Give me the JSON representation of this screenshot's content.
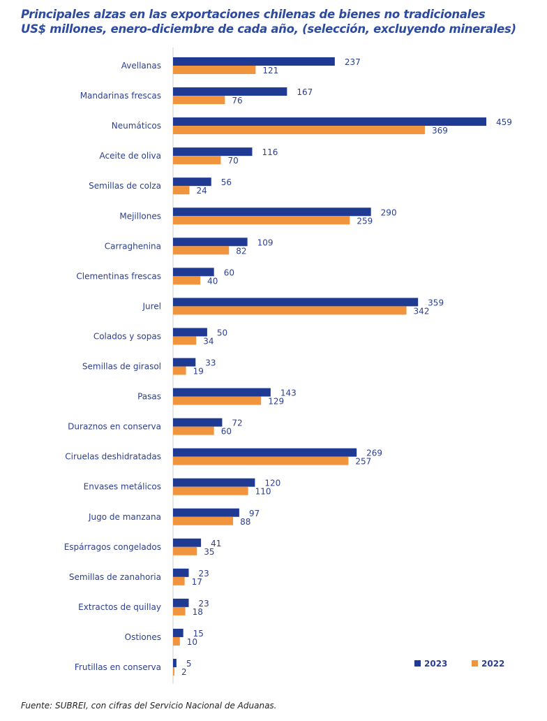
{
  "chart_data": {
    "type": "bar",
    "orientation": "horizontal",
    "title": "Principales alzas en las exportaciones chilenas de bienes no tradicionales",
    "subtitle": "US$ millones, enero-diciembre de cada año, (selección, excluyendo minerales)",
    "categories": [
      "Avellanas",
      "Mandarinas frescas",
      "Neumáticos",
      "Aceite de oliva",
      "Semillas de colza",
      "Mejillones",
      "Carraghenina",
      "Clementinas frescas",
      "Jurel",
      "Colados y sopas",
      "Semillas de girasol",
      "Pasas",
      "Duraznos en conserva",
      "Ciruelas deshidratadas",
      "Envases metálicos",
      "Jugo de manzana",
      "Espárragos congelados",
      "Semillas de zanahoria",
      "Extractos de quillay",
      "Ostiones",
      "Frutillas en conserva"
    ],
    "series": [
      {
        "name": "2023",
        "color": "#1f3a93",
        "values": [
          237,
          167,
          459,
          116,
          56,
          290,
          109,
          60,
          359,
          50,
          33,
          143,
          72,
          269,
          120,
          97,
          41,
          23,
          23,
          15,
          5
        ]
      },
      {
        "name": "2022",
        "color": "#f0953e",
        "values": [
          121,
          76,
          369,
          70,
          24,
          259,
          82,
          40,
          342,
          34,
          19,
          129,
          60,
          257,
          110,
          88,
          35,
          17,
          18,
          10,
          2
        ]
      }
    ],
    "xlim": [
      0,
      459
    ],
    "grid": false,
    "legend": "bottom-right",
    "source": "Fuente: SUBREI, con cifras del Servicio Nacional de Aduanas."
  }
}
